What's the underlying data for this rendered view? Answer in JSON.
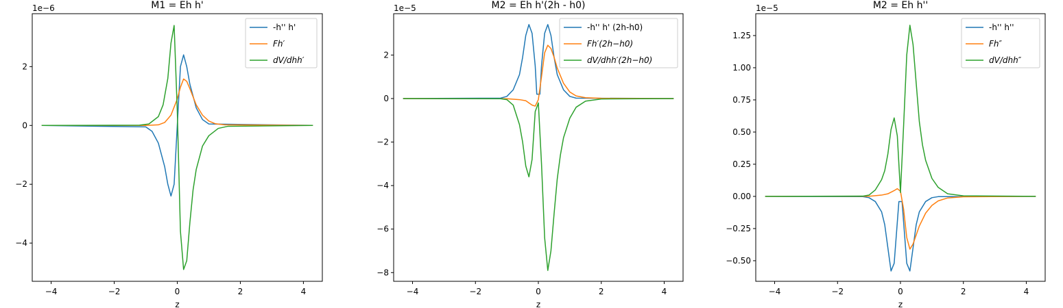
{
  "chart_data": [
    {
      "type": "line",
      "title": "M1 = Eh h'",
      "xlabel": "z",
      "ylabel": "",
      "offset_text": "1e−6",
      "xlim": [
        -4.6,
        4.6
      ],
      "ylim": [
        -5.3,
        3.8
      ],
      "xticks": [
        -4,
        -2,
        0,
        2,
        4
      ],
      "xtick_labels": [
        "−4",
        "−2",
        "0",
        "2",
        "4"
      ],
      "yticks": [
        -4,
        -2,
        0,
        2
      ],
      "ytick_labels": [
        "−4",
        "−2",
        "0",
        "2"
      ],
      "legend_loc": "upper right",
      "grid": false,
      "series": [
        {
          "name": "-h'' h'",
          "color": "#1f77b4",
          "x": [
            -4.3,
            -1.0,
            -0.8,
            -0.6,
            -0.4,
            -0.3,
            -0.2,
            -0.1,
            0.0,
            0.1,
            0.2,
            0.3,
            0.4,
            0.6,
            0.8,
            1.0,
            4.3
          ],
          "y": [
            0,
            -0.05,
            -0.2,
            -0.6,
            -1.4,
            -2.0,
            -2.4,
            -2.0,
            0.0,
            2.0,
            2.4,
            2.0,
            1.4,
            0.6,
            0.2,
            0.05,
            0
          ]
        },
        {
          "name": "Fh′",
          "color": "#ff7f0e",
          "x": [
            -4.3,
            -1.0,
            -0.6,
            -0.4,
            -0.2,
            0.0,
            0.1,
            0.2,
            0.3,
            0.4,
            0.6,
            0.8,
            1.0,
            1.2,
            1.5,
            4.3
          ],
          "y": [
            0,
            0.0,
            0.02,
            0.1,
            0.35,
            0.9,
            1.3,
            1.58,
            1.5,
            1.25,
            0.7,
            0.35,
            0.15,
            0.06,
            0.02,
            0
          ]
        },
        {
          "name": "dV/dhh′",
          "color": "#2ca02c",
          "x": [
            -4.3,
            -1.2,
            -0.9,
            -0.6,
            -0.45,
            -0.3,
            -0.2,
            -0.1,
            0.0,
            0.1,
            0.2,
            0.3,
            0.4,
            0.5,
            0.6,
            0.8,
            1.0,
            1.3,
            1.6,
            4.3
          ],
          "y": [
            0,
            0.01,
            0.05,
            0.3,
            0.7,
            1.6,
            2.8,
            3.4,
            0.5,
            -3.6,
            -4.9,
            -4.6,
            -3.3,
            -2.2,
            -1.5,
            -0.7,
            -0.35,
            -0.1,
            -0.03,
            0
          ]
        }
      ]
    },
    {
      "type": "line",
      "title": "M2 = Eh h'(2h - h0)",
      "xlabel": "z",
      "ylabel": "",
      "offset_text": "1e−5",
      "xlim": [
        -4.6,
        4.6
      ],
      "ylim": [
        -8.4,
        3.9
      ],
      "xticks": [
        -4,
        -2,
        0,
        2,
        4
      ],
      "xtick_labels": [
        "−4",
        "−2",
        "0",
        "2",
        "4"
      ],
      "yticks": [
        -8,
        -6,
        -4,
        -2,
        0,
        2
      ],
      "ytick_labels": [
        "−8",
        "−6",
        "−4",
        "−2",
        "0",
        "2"
      ],
      "legend_loc": "upper right",
      "grid": false,
      "series": [
        {
          "name": "-h'' h' (2h-h0)",
          "color": "#1f77b4",
          "x": [
            -4.3,
            -1.2,
            -1.0,
            -0.8,
            -0.6,
            -0.5,
            -0.4,
            -0.3,
            -0.2,
            -0.1,
            -0.05,
            0.05,
            0.1,
            0.2,
            0.3,
            0.4,
            0.5,
            0.6,
            0.8,
            1.0,
            1.2,
            4.3
          ],
          "y": [
            0,
            0.02,
            0.1,
            0.4,
            1.1,
            1.9,
            2.9,
            3.4,
            3.0,
            1.5,
            0.2,
            0.2,
            1.5,
            3.0,
            3.4,
            2.9,
            1.9,
            1.1,
            0.4,
            0.1,
            0.02,
            0
          ]
        },
        {
          "name": "Fh′(2h−h0)",
          "color": "#ff7f0e",
          "x": [
            -4.3,
            -1.0,
            -0.6,
            -0.4,
            -0.3,
            -0.2,
            -0.1,
            0.0,
            0.1,
            0.2,
            0.3,
            0.4,
            0.5,
            0.6,
            0.8,
            1.0,
            1.2,
            1.5,
            2.0,
            4.3
          ],
          "y": [
            0,
            -0.01,
            -0.05,
            -0.1,
            -0.2,
            -0.3,
            -0.35,
            -0.05,
            1.0,
            2.1,
            2.45,
            2.3,
            1.9,
            1.4,
            0.7,
            0.3,
            0.12,
            0.04,
            0.01,
            0
          ]
        },
        {
          "name": "dV/dhh′(2h−h0)",
          "color": "#2ca02c",
          "x": [
            -4.3,
            -1.2,
            -1.0,
            -0.8,
            -0.6,
            -0.5,
            -0.4,
            -0.3,
            -0.2,
            -0.1,
            0.0,
            0.1,
            0.2,
            0.3,
            0.4,
            0.5,
            0.6,
            0.7,
            0.8,
            1.0,
            1.2,
            1.5,
            2.0,
            4.3
          ],
          "y": [
            0,
            -0.01,
            -0.05,
            -0.3,
            -1.2,
            -2.0,
            -3.1,
            -3.6,
            -2.8,
            -0.6,
            -0.2,
            -3.0,
            -6.4,
            -7.9,
            -7.0,
            -5.3,
            -3.7,
            -2.6,
            -1.8,
            -0.9,
            -0.4,
            -0.12,
            -0.02,
            0
          ]
        }
      ]
    },
    {
      "type": "line",
      "title": "M2 = Eh h''",
      "xlabel": "z",
      "ylabel": "",
      "offset_text": "1e−5",
      "xlim": [
        -4.6,
        4.6
      ],
      "ylim": [
        -0.66,
        1.42
      ],
      "xticks": [
        -4,
        -2,
        0,
        2,
        4
      ],
      "xtick_labels": [
        "−4",
        "−2",
        "0",
        "2",
        "4"
      ],
      "yticks": [
        -0.5,
        -0.25,
        0.0,
        0.25,
        0.5,
        0.75,
        1.0,
        1.25
      ],
      "ytick_labels": [
        "−0.50",
        "−0.25",
        "0.00",
        "0.25",
        "0.50",
        "0.75",
        "1.00",
        "1.25"
      ],
      "legend_loc": "upper right",
      "grid": false,
      "series": [
        {
          "name": "-h'' h''",
          "color": "#1f77b4",
          "x": [
            -4.3,
            -1.2,
            -1.0,
            -0.8,
            -0.6,
            -0.5,
            -0.4,
            -0.3,
            -0.2,
            -0.1,
            -0.05,
            0.05,
            0.1,
            0.2,
            0.3,
            0.4,
            0.5,
            0.6,
            0.8,
            1.0,
            1.2,
            4.3
          ],
          "y": [
            0,
            -0.002,
            -0.01,
            -0.04,
            -0.12,
            -0.22,
            -0.4,
            -0.58,
            -0.52,
            -0.2,
            -0.04,
            -0.04,
            -0.2,
            -0.52,
            -0.58,
            -0.4,
            -0.22,
            -0.12,
            -0.04,
            -0.01,
            -0.002,
            0
          ]
        },
        {
          "name": "Fh″",
          "color": "#ff7f0e",
          "x": [
            -4.3,
            -1.0,
            -0.6,
            -0.4,
            -0.2,
            -0.1,
            0.0,
            0.1,
            0.2,
            0.3,
            0.4,
            0.5,
            0.6,
            0.8,
            1.0,
            1.2,
            1.5,
            2.0,
            4.3
          ],
          "y": [
            0,
            0.001,
            0.01,
            0.02,
            0.045,
            0.06,
            0.04,
            -0.1,
            -0.32,
            -0.41,
            -0.37,
            -0.3,
            -0.23,
            -0.13,
            -0.07,
            -0.035,
            -0.012,
            -0.003,
            0
          ]
        },
        {
          "name": "dV/dhh″",
          "color": "#2ca02c",
          "x": [
            -4.3,
            -1.2,
            -1.0,
            -0.8,
            -0.6,
            -0.5,
            -0.4,
            -0.3,
            -0.2,
            -0.1,
            0.0,
            0.1,
            0.2,
            0.3,
            0.4,
            0.5,
            0.6,
            0.7,
            0.8,
            1.0,
            1.2,
            1.5,
            2.0,
            4.3
          ],
          "y": [
            0,
            0.002,
            0.01,
            0.05,
            0.13,
            0.2,
            0.33,
            0.52,
            0.61,
            0.47,
            0.03,
            0.55,
            1.1,
            1.33,
            1.18,
            0.88,
            0.58,
            0.4,
            0.28,
            0.14,
            0.07,
            0.02,
            0.004,
            0
          ]
        }
      ]
    }
  ]
}
